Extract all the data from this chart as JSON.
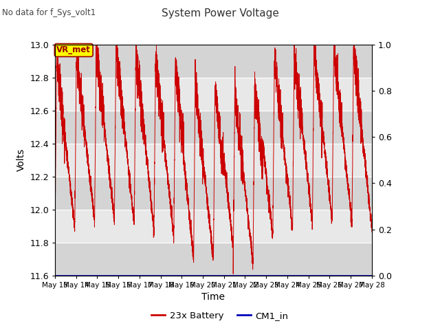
{
  "title": "System Power Voltage",
  "subtitle": "No data for f_Sys_volt1",
  "xlabel": "Time",
  "ylabel": "Volts",
  "ylim_left": [
    11.6,
    13.0
  ],
  "ylim_right": [
    0.0,
    1.0
  ],
  "background_color": "#ffffff",
  "plot_bg_color": "#e8e8e8",
  "grid_color": "#d0d0d0",
  "line_color": "#cc0000",
  "line_color2": "#0000bb",
  "vr_met_bg": "#ffff00",
  "vr_met_fg": "#990000",
  "xtick_labels": [
    "May 13",
    "May 14",
    "May 15",
    "May 16",
    "May 17",
    "May 18",
    "May 19",
    "May 20",
    "May 21",
    "May 22",
    "May 23",
    "May 24",
    "May 25",
    "May 26",
    "May 27",
    "May 28"
  ],
  "ytick_labels_left": [
    11.6,
    11.8,
    12.0,
    12.2,
    12.4,
    12.6,
    12.8,
    13.0
  ],
  "ytick_labels_right": [
    0.0,
    0.2,
    0.4,
    0.6,
    0.8,
    1.0
  ],
  "legend_entries": [
    "23x Battery",
    "CM1_in"
  ],
  "legend_colors": [
    "#cc0000",
    "#0000bb"
  ],
  "n_days": 16,
  "cycle_period": 1.0,
  "v_min": 11.85,
  "v_max_base": 12.9,
  "band_colors": [
    "#d8d8d8",
    "#e8e8e8"
  ]
}
